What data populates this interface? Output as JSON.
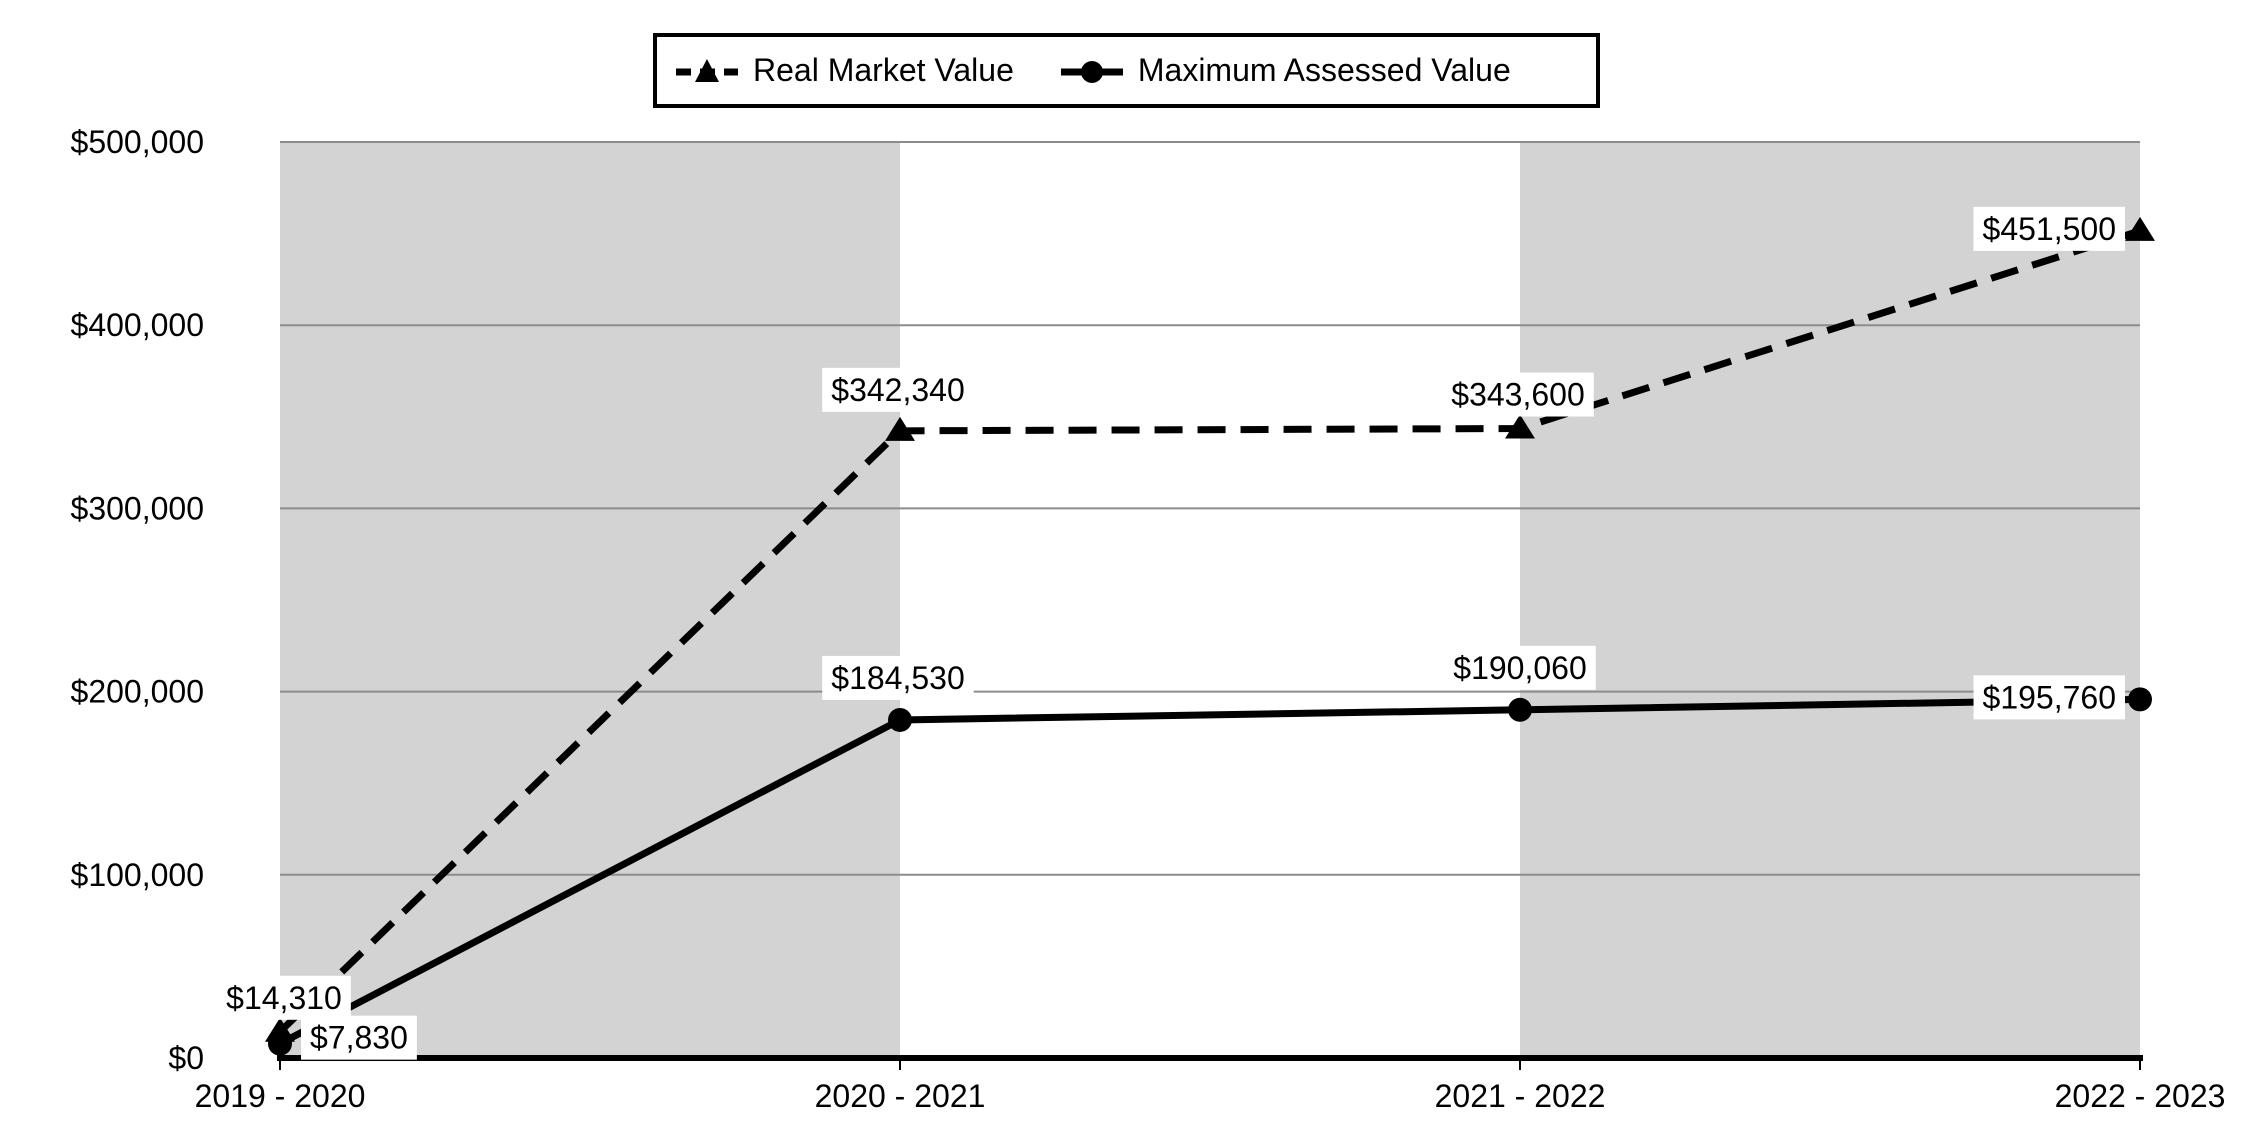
{
  "legend": {
    "items": [
      {
        "label": "Real Market Value",
        "line_style": "dashed",
        "marker": "triangle"
      },
      {
        "label": "Maximum Assessed Value",
        "line_style": "solid",
        "marker": "circle"
      }
    ]
  },
  "chart_data": {
    "type": "line",
    "title": "",
    "xlabel": "",
    "ylabel": "",
    "categories": [
      "2019 - 2020",
      "2020 - 2021",
      "2021 - 2022",
      "2022 - 2023"
    ],
    "series": [
      {
        "name": "Real Market Value",
        "line_style": "dashed",
        "marker": "triangle",
        "values": [
          14310,
          342340,
          343600,
          451500
        ],
        "data_labels": [
          "$14,310",
          "$342,340",
          "$343,600",
          "$451,500"
        ]
      },
      {
        "name": "Maximum Assessed Value",
        "line_style": "solid",
        "marker": "circle",
        "values": [
          7830,
          184530,
          190060,
          195760
        ],
        "data_labels": [
          "$7,830",
          "$184,530",
          "$190,060",
          "$195,760"
        ]
      }
    ],
    "y_axis": {
      "min": 0,
      "max": 500000,
      "step": 100000,
      "tick_labels": [
        "$0",
        "$100,000",
        "$200,000",
        "$300,000",
        "$400,000",
        "$500,000"
      ]
    },
    "grid": true,
    "legend_position": "top-center",
    "background_bands": "alternating category columns, gray-white-gray",
    "colors": {
      "series": "#000000",
      "band": "#d3d3d3",
      "gridline": "#8c8c8c",
      "axis": "#000000",
      "label_bg": "#ffffff",
      "text": "#000000"
    }
  }
}
